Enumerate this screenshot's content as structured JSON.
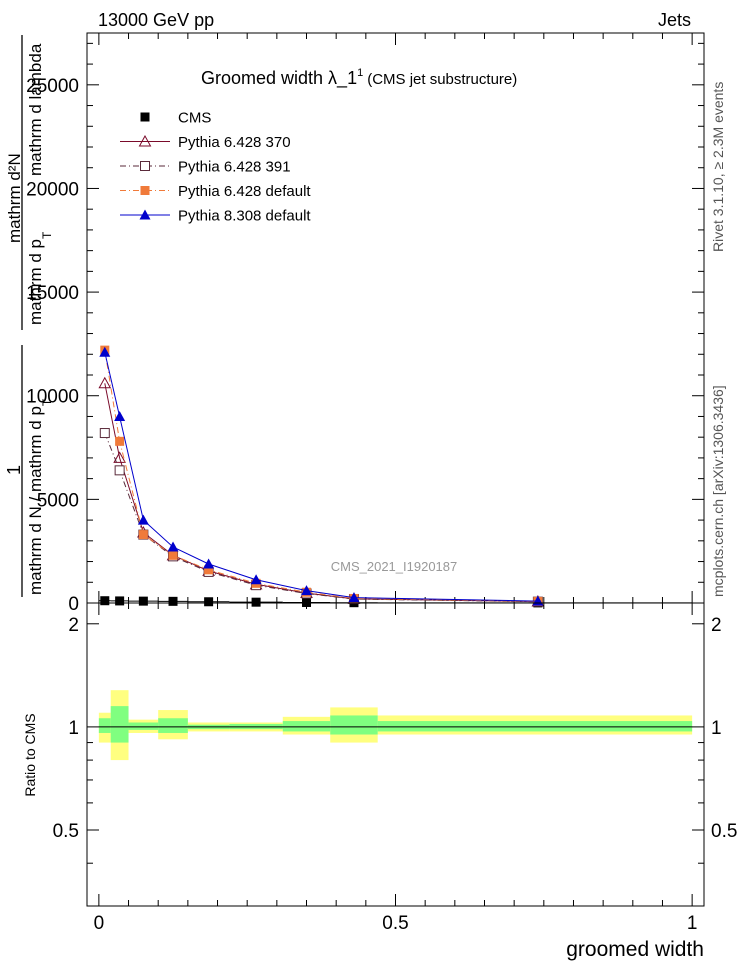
{
  "header": {
    "left": "13000 GeV pp",
    "right": "Jets"
  },
  "side_labels": {
    "rivet": "Rivet 3.1.10, ≥ 2.3M events",
    "mcplots": "mcplots.cern.ch [arXiv:1306.3436]"
  },
  "watermark": "CMS_2021_I1920187",
  "chart_data": [
    {
      "type": "line",
      "title_main": "Groomed width  λ_1",
      "title_sup": "1",
      "title_note": "(CMS jet substructure)",
      "xlabel": "groomed width",
      "ylabel_fraction_numerator": "1",
      "ylabel_fraction_denominator": "mathrm d N / mathrm d p",
      "ylabel_denominator_sub": "T",
      "ylabel_stacked_numerator": "mathrm d²N",
      "ylabel_stacked_middle": "mathrm d p",
      "ylabel_stacked_sub": "T",
      "ylabel_stacked_denominator": "mathrm d lambda",
      "xlim": [
        -0.02,
        1.02
      ],
      "ylim": [
        0,
        27500
      ],
      "yticks": [
        0,
        5000,
        10000,
        15000,
        20000,
        25000
      ],
      "ytick_labels": [
        "0",
        "5000",
        "10000",
        "15000",
        "20000",
        "25000"
      ],
      "legend_position": "top-left",
      "bins": [
        [
          0.0,
          0.02
        ],
        [
          0.02,
          0.05
        ],
        [
          0.05,
          0.1
        ],
        [
          0.1,
          0.15
        ],
        [
          0.15,
          0.22
        ],
        [
          0.22,
          0.31
        ],
        [
          0.31,
          0.39
        ],
        [
          0.39,
          0.47
        ],
        [
          0.47,
          1.0
        ]
      ],
      "x": [
        0.01,
        0.035,
        0.075,
        0.125,
        0.185,
        0.265,
        0.35,
        0.43,
        0.74
      ],
      "series": [
        {
          "name": "CMS",
          "values": [
            110,
            100,
            90,
            80,
            60,
            40,
            25,
            15,
            5
          ],
          "color": "#000000",
          "marker": "filled-square"
        },
        {
          "name": "Pythia 6.428 370",
          "values": [
            10600,
            7000,
            3400,
            2300,
            1550,
            900,
            480,
            200,
            70
          ],
          "color": "#7a0a2a",
          "dash": "solid",
          "marker": "open-triangle"
        },
        {
          "name": "Pythia 6.428 391",
          "values": [
            8200,
            6400,
            3300,
            2250,
            1500,
            860,
            460,
            190,
            65
          ],
          "color": "#5a2a3a",
          "dash": "dash-dot",
          "marker": "open-square"
        },
        {
          "name": "Pythia 6.428 default",
          "values": [
            12200,
            7800,
            3300,
            2300,
            1600,
            950,
            520,
            220,
            75
          ],
          "color": "#f07a3a",
          "dash": "dash-dot",
          "marker": "filled-square"
        },
        {
          "name": "Pythia 8.308 default",
          "values": [
            12100,
            9000,
            4000,
            2700,
            1880,
            1120,
            600,
            260,
            90
          ],
          "color": "#0000cc",
          "dash": "solid",
          "marker": "filled-triangle"
        }
      ]
    },
    {
      "type": "area",
      "ylabel": "Ratio to CMS",
      "xlabel": "groomed width",
      "xlim": [
        -0.02,
        1.02
      ],
      "ylim": [
        0.3,
        2.3
      ],
      "yticks": [
        0.5,
        1,
        2
      ],
      "ytick_labels": [
        "0.5",
        "1",
        "2"
      ],
      "xticks": [
        0,
        0.5,
        1
      ],
      "xtick_labels": [
        "0",
        "0.5",
        "1"
      ],
      "bins": [
        [
          0.0,
          0.02
        ],
        [
          0.02,
          0.05
        ],
        [
          0.05,
          0.1
        ],
        [
          0.1,
          0.15
        ],
        [
          0.15,
          0.22
        ],
        [
          0.22,
          0.31
        ],
        [
          0.31,
          0.39
        ],
        [
          0.39,
          0.47
        ],
        [
          0.47,
          1.0
        ]
      ],
      "band_outer": [
        [
          0.9,
          1.1
        ],
        [
          0.8,
          1.28
        ],
        [
          0.96,
          1.05
        ],
        [
          0.92,
          1.12
        ],
        [
          0.97,
          1.03
        ],
        [
          0.97,
          1.03
        ],
        [
          0.95,
          1.07
        ],
        [
          0.9,
          1.14
        ],
        [
          0.95,
          1.08
        ]
      ],
      "band_inner": [
        [
          0.96,
          1.06
        ],
        [
          0.9,
          1.15
        ],
        [
          0.98,
          1.03
        ],
        [
          0.96,
          1.06
        ],
        [
          0.985,
          1.015
        ],
        [
          0.985,
          1.02
        ],
        [
          0.97,
          1.04
        ],
        [
          0.95,
          1.08
        ],
        [
          0.97,
          1.04
        ]
      ],
      "band_outer_color": "#ffff80",
      "band_inner_color": "#80ff80",
      "reference_line": 1
    }
  ]
}
